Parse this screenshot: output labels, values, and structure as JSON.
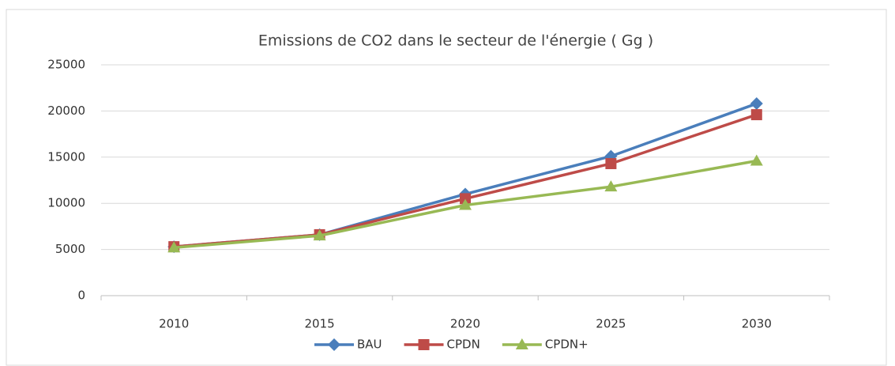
{
  "chart_data": {
    "type": "line",
    "title": "Emissions de CO2 dans le secteur de l'énergie ( Gg )",
    "categories": [
      "2010",
      "2015",
      "2020",
      "2025",
      "2030"
    ],
    "series": [
      {
        "name": "BAU",
        "color": "#4a7ebb",
        "marker": "diamond",
        "values": [
          5300,
          6600,
          11000,
          15100,
          20800
        ]
      },
      {
        "name": "CPDN",
        "color": "#be4b48",
        "marker": "square",
        "values": [
          5300,
          6600,
          10500,
          14300,
          19600
        ]
      },
      {
        "name": "CPDN+",
        "color": "#98b954",
        "marker": "triangle",
        "values": [
          5200,
          6500,
          9800,
          11800,
          14600
        ]
      }
    ],
    "ylim": [
      0,
      25000
    ],
    "yticks": [
      0,
      5000,
      10000,
      15000,
      20000,
      25000
    ],
    "grid": true,
    "legend": "bottom"
  }
}
